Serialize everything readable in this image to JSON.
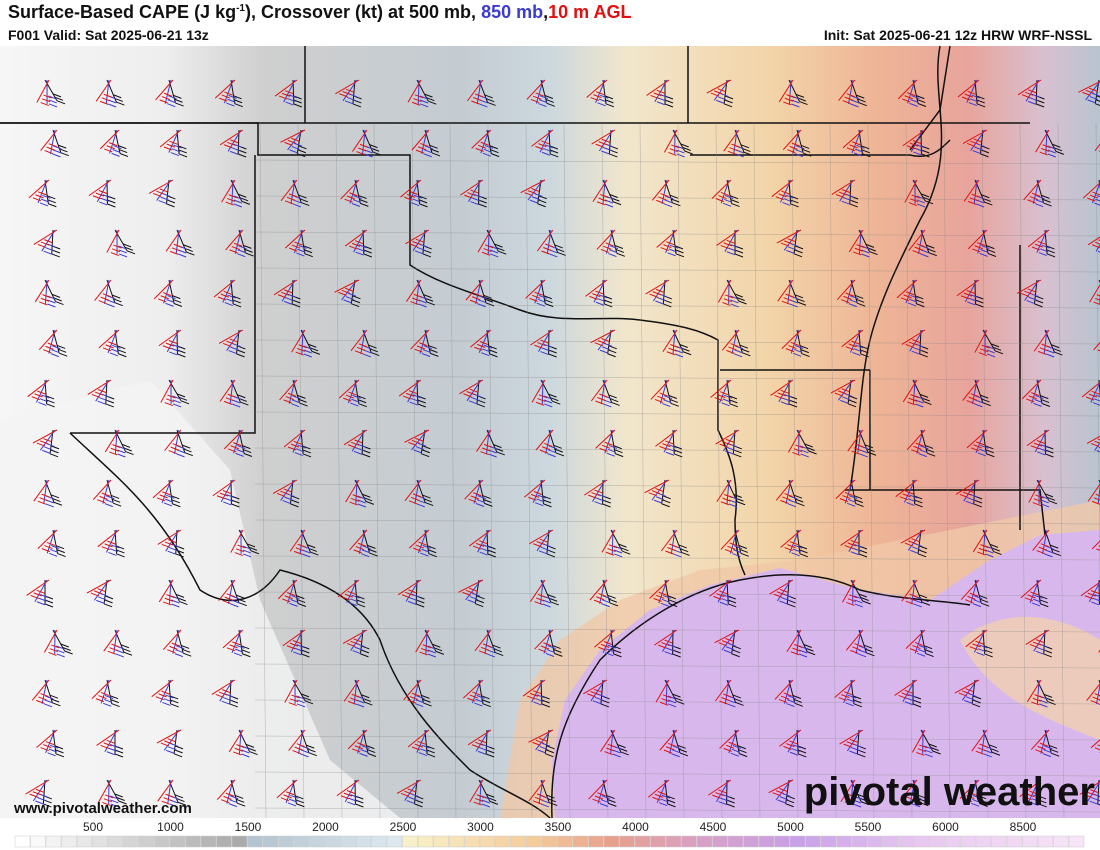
{
  "header": {
    "title": "Surface-Based CAPE (J kg",
    "title_sup": "-1",
    "title_rest": "), Crossover (kt) at 500 mb,",
    "title_blue": "850 mb",
    "title_comma": ",",
    "title_red": "10 m AGL",
    "valid": "F001 Valid: Sat 2025-06-21 13z",
    "init": "Init: Sat 2025-06-21 12z HRW WRF-NSSL"
  },
  "footer": {
    "website": "www.pivotalweather.com",
    "logo": "pivotal weather"
  },
  "colorbar": {
    "labels": [
      500,
      1000,
      1500,
      2000,
      2500,
      3000,
      3500,
      4000,
      4500,
      5000,
      5500,
      6000,
      8500
    ]
  }
}
